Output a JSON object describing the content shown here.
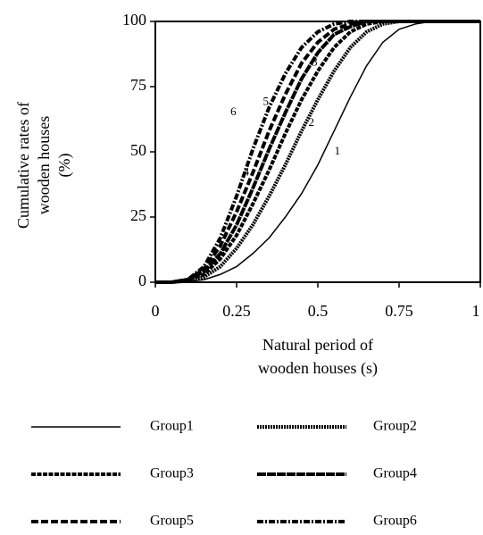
{
  "chart_data": {
    "type": "line",
    "y_label": [
      "Cumulative rates of",
      "wooden houses",
      "(%)"
    ],
    "x_label": [
      "Natural period of",
      "wooden houses (s)"
    ],
    "x": [
      0,
      0.05,
      0.1,
      0.15,
      0.2,
      0.25,
      0.3,
      0.35,
      0.4,
      0.45,
      0.5,
      0.55,
      0.6,
      0.65,
      0.7,
      0.75,
      0.8,
      0.85,
      0.9,
      0.95,
      1
    ],
    "series": [
      {
        "name": "Group1",
        "color": "#000000",
        "style": "thin",
        "values": [
          0,
          0,
          0.3,
          1,
          3,
          6,
          11,
          17,
          25,
          34,
          45,
          58,
          71,
          83,
          92,
          97,
          99,
          100,
          100,
          100,
          100
        ]
      },
      {
        "name": "Group2",
        "color": "#000000",
        "style": "dotted",
        "values": [
          0,
          0,
          0.5,
          2,
          6,
          13,
          22,
          33,
          45,
          58,
          70,
          81,
          90,
          96,
          99,
          100,
          100,
          100,
          100,
          100,
          100
        ]
      },
      {
        "name": "Group3",
        "color": "#000000",
        "style": "dashed-fine",
        "values": [
          0,
          0,
          1,
          3,
          9,
          18,
          30,
          43,
          57,
          70,
          81,
          90,
          96,
          99,
          100,
          100,
          100,
          100,
          100,
          100,
          100
        ]
      },
      {
        "name": "Group4",
        "color": "#000000",
        "style": "dashed-sparse",
        "values": [
          0,
          0,
          1,
          4,
          11,
          22,
          36,
          51,
          65,
          78,
          88,
          95,
          98,
          100,
          100,
          100,
          100,
          100,
          100,
          100,
          100
        ]
      },
      {
        "name": "Group5",
        "color": "#000000",
        "style": "dashed-long",
        "values": [
          0,
          0,
          1,
          5,
          14,
          27,
          42,
          58,
          72,
          84,
          92,
          97,
          99,
          100,
          100,
          100,
          100,
          100,
          100,
          100,
          100
        ]
      },
      {
        "name": "Group6",
        "color": "#000000",
        "style": "dash-dot",
        "values": [
          0,
          0,
          1,
          6,
          17,
          33,
          51,
          67,
          80,
          90,
          96,
          99,
          100,
          100,
          100,
          100,
          100,
          100,
          100,
          100,
          100
        ]
      }
    ],
    "annotations": [
      {
        "text": "1",
        "x": 0.56,
        "y": 50
      },
      {
        "text": "2",
        "x": 0.48,
        "y": 61
      },
      {
        "text": "3",
        "x": 0.49,
        "y": 84
      },
      {
        "text": "4",
        "x": 0.28,
        "y": 42
      },
      {
        "text": "5",
        "x": 0.34,
        "y": 69
      },
      {
        "text": "6",
        "x": 0.24,
        "y": 65
      }
    ],
    "xlim": [
      0,
      1
    ],
    "ylim": [
      0,
      100
    ],
    "xticks": [
      0,
      0.25,
      0.5,
      0.75,
      1
    ],
    "yticks": [
      0,
      25,
      50,
      75,
      100
    ]
  }
}
